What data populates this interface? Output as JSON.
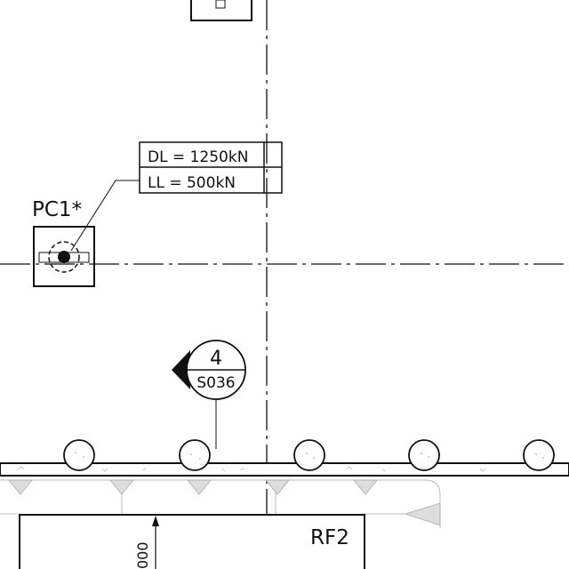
{
  "colors": {
    "ink": "#111111",
    "paper": "#ffffff",
    "hatch": "#bbbbbb",
    "light_fill": "#dddddd"
  },
  "load_table": {
    "dead_load": "DL = 1250kN",
    "live_load": "LL = 500kN"
  },
  "pile_cap": {
    "label": "PC1*"
  },
  "section_marker": {
    "number": "4",
    "sheet": "S036"
  },
  "footing": {
    "label": "RF2",
    "dimension_text": "000"
  }
}
